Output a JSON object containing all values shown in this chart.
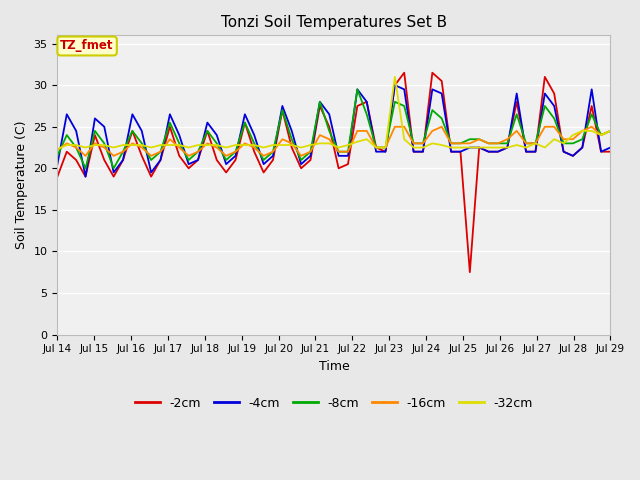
{
  "title": "Tonzi Soil Temperatures Set B",
  "xlabel": "Time",
  "ylabel": "Soil Temperature (C)",
  "annotation_text": "TZ_fmet",
  "annotation_bg": "#ffffcc",
  "annotation_border": "#cccc00",
  "annotation_fg": "#cc0000",
  "ylim": [
    0,
    36
  ],
  "yticks": [
    0,
    5,
    10,
    15,
    20,
    25,
    30,
    35
  ],
  "xtick_labels": [
    "Jul 14",
    "Jul 15",
    "Jul 16",
    "Jul 17",
    "Jul 18",
    "Jul 19",
    "Jul 20",
    "Jul 21",
    "Jul 22",
    "Jul 23",
    "Jul 24",
    "Jul 25",
    "Jul 26",
    "Jul 27",
    "Jul 28",
    "Jul 29"
  ],
  "colors": {
    "-2cm": "#dd0000",
    "-4cm": "#0000dd",
    "-8cm": "#00aa00",
    "-16cm": "#ff8800",
    "-32cm": "#dddd00"
  },
  "series": {
    "-2cm": [
      19.0,
      22.0,
      21.0,
      19.0,
      24.0,
      21.0,
      19.0,
      21.0,
      24.5,
      21.5,
      19.0,
      21.0,
      25.0,
      21.5,
      20.0,
      21.0,
      24.5,
      21.0,
      19.5,
      21.0,
      25.5,
      22.0,
      19.5,
      21.0,
      27.0,
      22.5,
      20.0,
      21.0,
      27.5,
      25.0,
      20.0,
      20.5,
      27.5,
      28.0,
      22.5,
      22.0,
      30.0,
      31.5,
      22.0,
      22.0,
      31.5,
      30.5,
      22.0,
      22.0,
      7.5,
      22.5,
      22.0,
      22.0,
      22.5,
      28.0,
      22.0,
      22.0,
      31.0,
      29.0,
      22.0,
      21.5,
      22.5,
      27.5,
      22.0,
      22.0
    ],
    "-4cm": [
      20.5,
      26.5,
      24.5,
      19.0,
      26.0,
      25.0,
      19.5,
      21.0,
      26.5,
      24.5,
      19.5,
      21.0,
      26.5,
      24.0,
      20.5,
      21.0,
      25.5,
      24.0,
      20.5,
      21.5,
      26.5,
      24.0,
      20.5,
      21.5,
      27.5,
      24.5,
      20.5,
      21.5,
      28.0,
      26.5,
      21.5,
      21.5,
      29.5,
      28.0,
      22.0,
      22.0,
      30.0,
      29.5,
      22.0,
      22.0,
      29.5,
      29.0,
      22.0,
      22.0,
      22.5,
      22.5,
      22.0,
      22.0,
      22.5,
      29.0,
      22.0,
      22.0,
      29.0,
      27.5,
      22.0,
      21.5,
      22.5,
      29.5,
      22.0,
      22.5
    ],
    "-8cm": [
      21.5,
      24.0,
      22.5,
      20.0,
      24.5,
      23.0,
      20.0,
      22.0,
      24.5,
      23.0,
      21.0,
      22.0,
      25.5,
      23.0,
      21.0,
      22.0,
      24.5,
      23.0,
      21.0,
      22.0,
      25.5,
      23.0,
      21.0,
      22.0,
      27.0,
      23.5,
      21.0,
      22.0,
      28.0,
      24.5,
      22.0,
      22.0,
      29.5,
      26.5,
      22.5,
      22.5,
      28.0,
      27.5,
      23.0,
      23.0,
      27.0,
      26.0,
      23.0,
      23.0,
      23.5,
      23.5,
      23.0,
      23.0,
      23.0,
      26.5,
      23.0,
      23.0,
      27.5,
      26.0,
      23.0,
      23.0,
      23.5,
      26.5,
      24.0,
      24.5
    ],
    "-16cm": [
      22.2,
      23.0,
      22.5,
      21.5,
      23.0,
      22.5,
      21.5,
      22.0,
      23.0,
      22.5,
      21.5,
      22.0,
      23.5,
      22.5,
      21.5,
      22.0,
      23.0,
      22.5,
      21.5,
      22.0,
      23.0,
      22.5,
      21.5,
      22.0,
      23.5,
      23.0,
      21.5,
      22.0,
      24.0,
      23.5,
      22.0,
      22.0,
      24.5,
      24.5,
      22.5,
      22.5,
      25.0,
      25.0,
      23.0,
      23.0,
      24.5,
      25.0,
      23.0,
      23.0,
      23.0,
      23.5,
      23.0,
      23.0,
      23.5,
      24.5,
      23.0,
      23.0,
      25.0,
      25.0,
      23.5,
      23.5,
      24.5,
      25.0,
      24.0,
      24.5
    ],
    "-32cm": [
      22.3,
      22.8,
      22.8,
      22.5,
      22.8,
      22.8,
      22.5,
      22.8,
      22.8,
      22.8,
      22.5,
      22.8,
      22.8,
      22.8,
      22.5,
      22.8,
      22.8,
      22.8,
      22.5,
      22.8,
      22.8,
      22.8,
      22.5,
      22.8,
      22.8,
      22.8,
      22.5,
      22.8,
      23.0,
      23.0,
      22.5,
      22.8,
      23.2,
      23.5,
      22.5,
      22.5,
      31.0,
      23.5,
      22.5,
      22.5,
      23.0,
      22.8,
      22.5,
      22.5,
      22.5,
      22.5,
      22.5,
      22.5,
      22.5,
      22.8,
      22.5,
      23.0,
      22.5,
      23.5,
      23.0,
      24.0,
      24.5,
      24.5,
      24.0,
      24.5
    ]
  },
  "bg_color": "#e8e8e8",
  "plot_bg": "#f0f0f0",
  "grid_color": "#ffffff",
  "legend_labels": [
    "-2cm",
    "-4cm",
    "-8cm",
    "-16cm",
    "-32cm"
  ]
}
